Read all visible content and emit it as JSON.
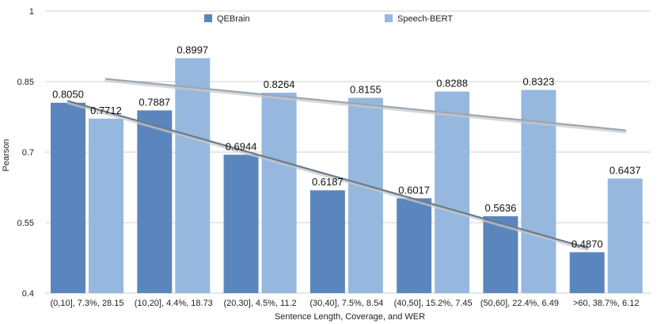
{
  "chart_data": {
    "type": "bar",
    "title": "",
    "xlabel": "Sentence Length, Coverage, and WER",
    "ylabel": "Pearson",
    "ylim": [
      0.4,
      1.0
    ],
    "yticks": [
      "0.4",
      "0.55",
      "0.7",
      "0.85",
      "1"
    ],
    "grid": true,
    "legend_position": "top",
    "categories": [
      "(0,10], 7.3%, 28.15",
      "(10,20], 4.4%, 18.73",
      "(20,30], 4.5%, 11.2",
      "(30,40], 7.5%, 8.54",
      "(40,50], 15.2%, 7.45",
      "(50,60], 22.4%, 6.49",
      ">60, 38.7%, 6.12"
    ],
    "series": [
      {
        "name": "QEBrain",
        "color": "#5b86bd",
        "values": [
          0.805,
          0.7887,
          0.6944,
          0.6187,
          0.6017,
          0.5636,
          0.487
        ],
        "labels": [
          "0.8050",
          "0.7887",
          "0.6944",
          "0.6187",
          "0.6017",
          "0.5636",
          "0.4870"
        ]
      },
      {
        "name": "Speech-BERT",
        "color": "#96b8de",
        "values": [
          0.7712,
          0.8997,
          0.8264,
          0.8155,
          0.8288,
          0.8323,
          0.6437
        ],
        "labels": [
          "0.7712",
          "0.8997",
          "0.8264",
          "0.8155",
          "0.8288",
          "0.8323",
          "0.6437"
        ]
      }
    ],
    "trendlines": [
      {
        "series": "QEBrain",
        "start": 0.8086,
        "end": 0.4964,
        "color": "#6a7a8c"
      },
      {
        "series": "Speech-BERT",
        "start": 0.8558,
        "end": 0.7465,
        "color": "#9aa6b2"
      }
    ]
  }
}
